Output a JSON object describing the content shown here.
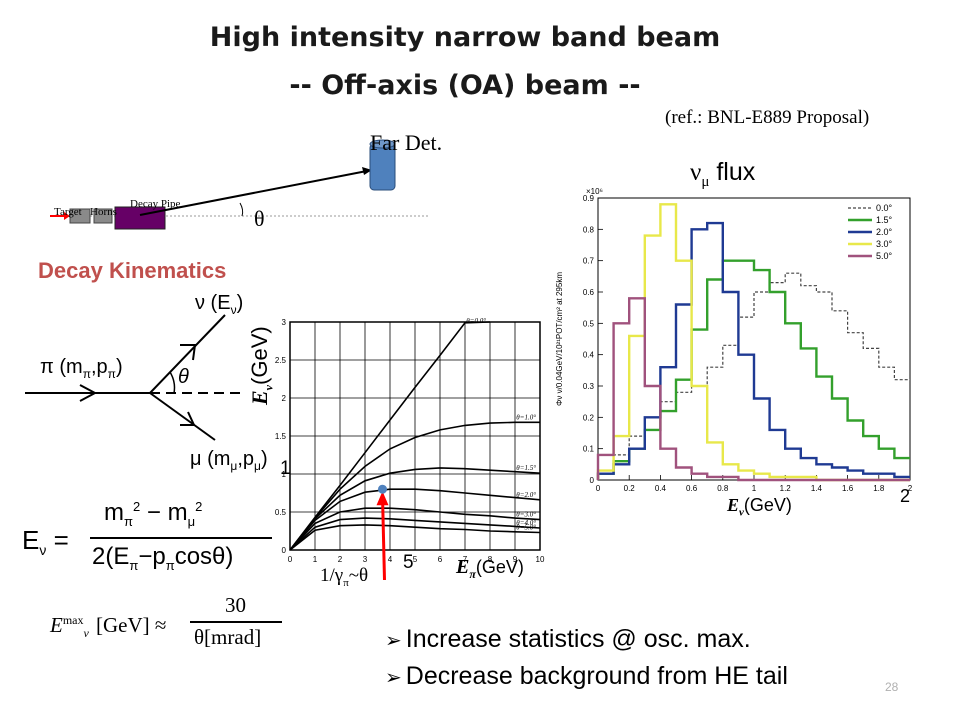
{
  "slide": {
    "title_line1": "High intensity narrow band beam",
    "title_line2": "-- Off-axis (OA) beam --",
    "reference": "(ref.: BNL-E889 Proposal)",
    "page_number": "28"
  },
  "beamline": {
    "far_det_label": "Far Det.",
    "target_label": "Target",
    "horns_label": "Horns",
    "decay_pipe_label": "Decay Pipe",
    "angle_label": "θ"
  },
  "decay": {
    "heading": "Decay Kinematics",
    "nu_label": "ν (E",
    "nu_sub": "ν",
    "pi_label": "π (m",
    "mu_label": "μ (m",
    "theta_label": "θ",
    "formula_lhs": "E",
    "formula_num": "m",
    "formula_den": "2(E",
    "formula_cos": "cosθ)",
    "emax_base": "E",
    "emax_sup": "max",
    "emax_bracket": "[GeV] ≈",
    "emax_num": "30",
    "emax_den": "θ[mrad]"
  },
  "kin_chart": {
    "ylabel": "E",
    "ylabel_sub": "ν",
    "ylabel_unit": "(GeV)",
    "xlabel": "E",
    "xlabel_sub": "π",
    "xlabel_unit": "(GeV)",
    "marker_y": "1",
    "marker_x": "5",
    "gamma_label": "1/γ",
    "gamma_sub": "π",
    "gamma_tail": "~θ"
  },
  "flux_chart": {
    "title_nu": "ν",
    "title_sub": "μ",
    "title_word": "flux",
    "scale_label": "×10⁶",
    "yaxis_label": "Φν ν/0.04GeV/10²¹POT/cm² at 295km",
    "xlabel": "E",
    "xlabel_sub": "ν",
    "xlabel_unit": "(GeV)",
    "extra_tick": "2"
  },
  "bullets": [
    "Increase statistics @ osc. max.",
    "Decrease background from HE tail"
  ],
  "colors": {
    "red": "#ff0000",
    "heading": "#c0504d",
    "horn_gray": "#8a8a8a",
    "pipe": "#660066",
    "detector": "#4f81bd",
    "marker": "#4f81bd"
  },
  "chart_data": [
    {
      "type": "line",
      "title": "",
      "xlabel": "Eπ(GeV)",
      "ylabel": "Eν(GeV)",
      "xlim": [
        0,
        10
      ],
      "ylim": [
        0,
        3
      ],
      "grid": true,
      "x_ticks": [
        "0",
        "1",
        "2",
        "3",
        "4",
        "5",
        "6",
        "7",
        "8",
        "9",
        "10"
      ],
      "y_ticks": [
        "0",
        "0.5",
        "1",
        "1.5",
        "2",
        "2.5",
        "3"
      ],
      "series": [
        {
          "name": "θ=0.0°",
          "x": [
            0,
            1,
            2,
            3,
            4,
            5,
            6,
            7,
            8
          ],
          "y": [
            0,
            0.43,
            0.85,
            1.28,
            1.71,
            2.14,
            2.56,
            2.99,
            3.0
          ]
        },
        {
          "name": "θ=1.0°",
          "x": [
            0,
            1,
            2,
            3,
            4,
            5,
            6,
            7,
            8,
            9,
            10
          ],
          "y": [
            0,
            0.42,
            0.8,
            1.1,
            1.33,
            1.48,
            1.58,
            1.64,
            1.67,
            1.68,
            1.68
          ]
        },
        {
          "name": "θ=1.5°",
          "x": [
            0,
            1,
            2,
            3,
            4,
            5,
            6,
            7,
            8,
            9,
            10
          ],
          "y": [
            0,
            0.41,
            0.72,
            0.91,
            1.01,
            1.06,
            1.08,
            1.07,
            1.05,
            1.03,
            1.01
          ]
        },
        {
          "name": "θ=2.0°",
          "x": [
            0,
            1,
            2,
            3,
            4,
            5,
            6,
            7,
            8,
            9,
            10
          ],
          "y": [
            0,
            0.39,
            0.64,
            0.76,
            0.8,
            0.8,
            0.78,
            0.75,
            0.72,
            0.69,
            0.66
          ]
        },
        {
          "name": "θ=3.0°",
          "x": [
            0,
            1,
            2,
            3,
            4,
            5,
            6,
            7,
            8,
            9,
            10
          ],
          "y": [
            0,
            0.35,
            0.5,
            0.55,
            0.55,
            0.53,
            0.5,
            0.47,
            0.45,
            0.42,
            0.4
          ]
        },
        {
          "name": "θ=4.0°",
          "x": [
            0,
            1,
            2,
            3,
            4,
            5,
            6,
            7,
            8,
            9,
            10
          ],
          "y": [
            0,
            0.3,
            0.4,
            0.42,
            0.41,
            0.39,
            0.37,
            0.35,
            0.33,
            0.31,
            0.29
          ]
        },
        {
          "name": "θ=5.0°",
          "x": [
            0,
            1,
            2,
            3,
            4,
            5,
            6,
            7,
            8,
            9,
            10
          ],
          "y": [
            0,
            0.26,
            0.32,
            0.33,
            0.32,
            0.3,
            0.28,
            0.27,
            0.25,
            0.24,
            0.23
          ]
        }
      ],
      "marker": {
        "x": 3.7,
        "y": 0.8
      }
    },
    {
      "type": "line",
      "title": "νμ flux",
      "xlabel": "Eν(GeV)",
      "ylabel": "Φν ν/0.04GeV/10²¹POT/cm² at 295km",
      "xlim": [
        0,
        2
      ],
      "ylim": [
        0,
        0.9
      ],
      "grid": false,
      "legend": "top-right",
      "x_ticks": [
        "0",
        "0.2",
        "0.4",
        "0.6",
        "0.8",
        "1",
        "1.2",
        "1.4",
        "1.6",
        "1.8",
        "2"
      ],
      "y_ticks": [
        "0",
        "0.1",
        "0.2",
        "0.3",
        "0.4",
        "0.5",
        "0.6",
        "0.7",
        "0.8",
        "0.9"
      ],
      "series": [
        {
          "name": "0.0°",
          "color": "#444444",
          "dashed": true,
          "x": [
            0.1,
            0.2,
            0.3,
            0.4,
            0.5,
            0.6,
            0.7,
            0.8,
            0.9,
            1.0,
            1.1,
            1.2,
            1.3,
            1.4,
            1.5,
            1.6,
            1.7,
            1.8,
            1.9,
            2.0
          ],
          "y": [
            0.02,
            0.08,
            0.14,
            0.2,
            0.25,
            0.28,
            0.3,
            0.36,
            0.43,
            0.52,
            0.6,
            0.63,
            0.66,
            0.62,
            0.6,
            0.54,
            0.47,
            0.42,
            0.36,
            0.32
          ]
        },
        {
          "name": "1.5°",
          "color": "#33a02c",
          "x": [
            0.1,
            0.2,
            0.3,
            0.4,
            0.5,
            0.6,
            0.7,
            0.8,
            0.9,
            1.0,
            1.1,
            1.2,
            1.3,
            1.4,
            1.5,
            1.6,
            1.7,
            1.8,
            1.9,
            2.0
          ],
          "y": [
            0.02,
            0.06,
            0.1,
            0.16,
            0.22,
            0.32,
            0.48,
            0.64,
            0.7,
            0.7,
            0.67,
            0.6,
            0.5,
            0.42,
            0.33,
            0.26,
            0.19,
            0.14,
            0.1,
            0.07
          ]
        },
        {
          "name": "2.0°",
          "color": "#1f3a93",
          "x": [
            0.1,
            0.2,
            0.3,
            0.4,
            0.5,
            0.6,
            0.7,
            0.8,
            0.9,
            1.0,
            1.1,
            1.2,
            1.3,
            1.4,
            1.5,
            1.6,
            1.7,
            1.8,
            1.9,
            2.0
          ],
          "y": [
            0.02,
            0.05,
            0.1,
            0.2,
            0.36,
            0.56,
            0.8,
            0.82,
            0.6,
            0.4,
            0.26,
            0.16,
            0.1,
            0.07,
            0.05,
            0.04,
            0.03,
            0.02,
            0.02,
            0.01
          ]
        },
        {
          "name": "3.0°",
          "color": "#e8e84a",
          "x": [
            0.1,
            0.2,
            0.3,
            0.4,
            0.5,
            0.6,
            0.7,
            0.8,
            0.9,
            1.0,
            1.1,
            1.2,
            1.3,
            1.4,
            1.5,
            1.6,
            1.7,
            1.8,
            1.9,
            2.0
          ],
          "y": [
            0.03,
            0.14,
            0.46,
            0.78,
            0.88,
            0.7,
            0.3,
            0.12,
            0.05,
            0.03,
            0.02,
            0.01,
            0.01,
            0.01,
            0.0,
            0.0,
            0.0,
            0.0,
            0.0,
            0.0
          ]
        },
        {
          "name": "5.0°",
          "color": "#a0527d",
          "x": [
            0.1,
            0.2,
            0.3,
            0.4,
            0.5,
            0.6,
            0.7,
            0.8,
            0.9,
            1.0,
            1.1,
            1.2,
            1.3,
            1.4,
            1.5,
            1.6,
            1.7,
            1.8,
            1.9,
            2.0
          ],
          "y": [
            0.08,
            0.5,
            0.58,
            0.3,
            0.1,
            0.04,
            0.02,
            0.01,
            0.01,
            0.0,
            0.0,
            0.0,
            0.0,
            0.0,
            0.0,
            0.0,
            0.0,
            0.0,
            0.0,
            0.0
          ]
        }
      ]
    }
  ]
}
